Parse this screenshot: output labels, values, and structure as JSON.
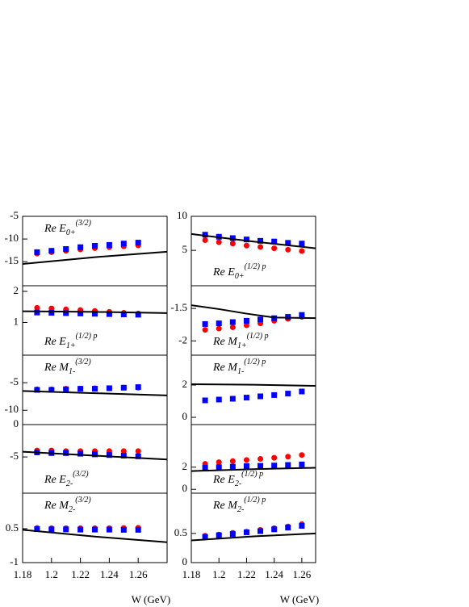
{
  "chart_data": [
    {
      "type": "scatter",
      "label": {
        "main": "Re E",
        "sub": "0+",
        "sup": "(3/2)"
      },
      "xlim": [
        1.18,
        1.28
      ],
      "ylim": [
        -20.3,
        -5
      ],
      "yticks": [
        -5,
        -10,
        -15
      ],
      "series": [
        {
          "color": "#ff0000",
          "marker": "circle",
          "x": [
            1.19,
            1.2,
            1.21,
            1.22,
            1.23,
            1.24,
            1.25,
            1.26
          ],
          "values": [
            -13.2,
            -12.9,
            -12.6,
            -12.3,
            -12.0,
            -11.8,
            -11.6,
            -11.4
          ]
        },
        {
          "color": "#0000ff",
          "marker": "square",
          "x": [
            1.19,
            1.2,
            1.21,
            1.22,
            1.23,
            1.24,
            1.25,
            1.26
          ],
          "values": [
            -12.9,
            -12.6,
            -12.2,
            -11.8,
            -11.5,
            -11.3,
            -11.0,
            -10.8
          ]
        },
        {
          "color": "#000000",
          "marker": "line",
          "x": [
            1.18,
            1.23,
            1.28
          ],
          "values": [
            -15.5,
            -14.0,
            -12.8
          ]
        }
      ]
    },
    {
      "type": "scatter",
      "label": {
        "main": "Re E",
        "sub": "0+",
        "sup": "(1/2) p"
      },
      "xlim": [
        1.18,
        1.27
      ],
      "ylim": [
        -0.2,
        10
      ],
      "yticks": [
        10,
        5
      ],
      "series": [
        {
          "color": "#ff0000",
          "marker": "circle",
          "x": [
            1.19,
            1.2,
            1.21,
            1.22,
            1.23,
            1.24,
            1.25,
            1.26
          ],
          "values": [
            6.5,
            6.2,
            6.0,
            5.7,
            5.5,
            5.3,
            5.1,
            4.9
          ]
        },
        {
          "color": "#0000ff",
          "marker": "square",
          "x": [
            1.19,
            1.2,
            1.21,
            1.22,
            1.23,
            1.24,
            1.25,
            1.26
          ],
          "values": [
            7.3,
            7.0,
            6.8,
            6.6,
            6.4,
            6.3,
            6.1,
            6.0
          ]
        },
        {
          "color": "#000000",
          "marker": "line",
          "x": [
            1.18,
            1.225,
            1.27
          ],
          "values": [
            7.4,
            6.3,
            5.3
          ]
        }
      ]
    },
    {
      "type": "scatter",
      "label": {
        "main": "Re E",
        "sub": "1+",
        "sup": "(1/2) p"
      },
      "xlim": [
        1.18,
        1.28
      ],
      "ylim": [
        -0.05,
        2.18
      ],
      "yticks": [
        2,
        1
      ],
      "series": [
        {
          "color": "#ff0000",
          "marker": "circle",
          "x": [
            1.19,
            1.2,
            1.21,
            1.22,
            1.23,
            1.24,
            1.25,
            1.26
          ],
          "values": [
            1.47,
            1.45,
            1.42,
            1.4,
            1.37,
            1.34,
            1.31,
            1.29
          ]
        },
        {
          "color": "#0000ff",
          "marker": "square",
          "x": [
            1.19,
            1.2,
            1.21,
            1.22,
            1.23,
            1.24,
            1.25,
            1.26
          ],
          "values": [
            1.32,
            1.31,
            1.3,
            1.29,
            1.28,
            1.27,
            1.26,
            1.25
          ]
        },
        {
          "color": "#000000",
          "marker": "line",
          "x": [
            1.18,
            1.23,
            1.28
          ],
          "values": [
            1.36,
            1.34,
            1.3
          ]
        }
      ]
    },
    {
      "type": "scatter",
      "label": {
        "main": "Re M",
        "sub": "1+",
        "sup": "(1/2) p"
      },
      "xlim": [
        1.18,
        1.27
      ],
      "ylim": [
        -2.22,
        -1.15
      ],
      "yticks": [
        -1.5,
        -2
      ],
      "series": [
        {
          "color": "#ff0000",
          "marker": "circle",
          "x": [
            1.19,
            1.2,
            1.21,
            1.22,
            1.23,
            1.24,
            1.25,
            1.26
          ],
          "values": [
            -1.83,
            -1.81,
            -1.79,
            -1.76,
            -1.73,
            -1.69,
            -1.66,
            -1.63
          ]
        },
        {
          "color": "#0000ff",
          "marker": "square",
          "x": [
            1.19,
            1.2,
            1.21,
            1.22,
            1.23,
            1.24,
            1.25,
            1.26
          ],
          "values": [
            -1.74,
            -1.73,
            -1.71,
            -1.69,
            -1.67,
            -1.65,
            -1.63,
            -1.6
          ]
        },
        {
          "color": "#000000",
          "marker": "line",
          "x": [
            1.18,
            1.2,
            1.22,
            1.24,
            1.27
          ],
          "values": [
            -1.45,
            -1.51,
            -1.58,
            -1.64,
            -1.65
          ]
        }
      ]
    },
    {
      "type": "scatter",
      "label": {
        "main": "Re M",
        "sub": "1-",
        "sup": "(3/2)"
      },
      "xlim": [
        1.18,
        1.28
      ],
      "ylim": [
        -12.6,
        0
      ],
      "yticks": [
        -5,
        -10
      ],
      "series": [
        {
          "color": "#ff0000",
          "marker": "circle",
          "x": [
            1.19,
            1.2,
            1.21,
            1.22,
            1.23,
            1.24,
            1.25,
            1.26
          ],
          "values": [
            -6.2,
            -6.2,
            -6.1,
            -6.1,
            -6.0,
            -6.0,
            -5.9,
            -5.9
          ]
        },
        {
          "color": "#0000ff",
          "marker": "square",
          "x": [
            1.19,
            1.2,
            1.21,
            1.22,
            1.23,
            1.24,
            1.25,
            1.26
          ],
          "values": [
            -6.3,
            -6.3,
            -6.2,
            -6.1,
            -6.1,
            -6.0,
            -5.9,
            -5.8
          ]
        },
        {
          "color": "#000000",
          "marker": "line",
          "x": [
            1.18,
            1.23,
            1.28
          ],
          "values": [
            -6.5,
            -6.9,
            -7.3
          ]
        }
      ]
    },
    {
      "type": "scatter",
      "label": {
        "main": "Re M",
        "sub": "1-",
        "sup": "(1/2) p"
      },
      "xlim": [
        1.18,
        1.27
      ],
      "ylim": [
        -0.45,
        3.85
      ],
      "yticks": [
        2,
        0
      ],
      "series": [
        {
          "color": "#0000ff",
          "marker": "square",
          "x": [
            1.19,
            1.2,
            1.21,
            1.22,
            1.23,
            1.24,
            1.25,
            1.26
          ],
          "values": [
            1.05,
            1.1,
            1.15,
            1.22,
            1.3,
            1.38,
            1.47,
            1.6
          ]
        },
        {
          "color": "#000000",
          "marker": "line",
          "x": [
            1.18,
            1.225,
            1.27
          ],
          "values": [
            2.05,
            2.02,
            1.95
          ]
        }
      ]
    },
    {
      "type": "scatter",
      "label": {
        "main": "Re E",
        "sub": "2-",
        "sup": "(3/2)"
      },
      "xlim": [
        1.18,
        1.28
      ],
      "ylim": [
        -10.6,
        0
      ],
      "yticks": [
        0,
        -5
      ],
      "series": [
        {
          "color": "#ff0000",
          "marker": "circle",
          "x": [
            1.19,
            1.2,
            1.21,
            1.22,
            1.23,
            1.24,
            1.25,
            1.26
          ],
          "values": [
            -4.0,
            -4.0,
            -4.1,
            -4.1,
            -4.1,
            -4.1,
            -4.1,
            -4.1
          ]
        },
        {
          "color": "#0000ff",
          "marker": "square",
          "x": [
            1.19,
            1.2,
            1.21,
            1.22,
            1.23,
            1.24,
            1.25,
            1.26
          ],
          "values": [
            -4.3,
            -4.4,
            -4.4,
            -4.5,
            -4.6,
            -4.7,
            -4.8,
            -4.9
          ]
        },
        {
          "color": "#000000",
          "marker": "line",
          "x": [
            1.18,
            1.23,
            1.28
          ],
          "values": [
            -4.2,
            -4.8,
            -5.4
          ]
        }
      ]
    },
    {
      "type": "scatter",
      "label": {
        "main": "Re E",
        "sub": "2-",
        "sup": "(1/2) p"
      },
      "xlim": [
        1.18,
        1.27
      ],
      "ylim": [
        -0.35,
        5.85
      ],
      "yticks": [
        2,
        0
      ],
      "series": [
        {
          "color": "#ff0000",
          "marker": "circle",
          "x": [
            1.19,
            1.2,
            1.21,
            1.22,
            1.23,
            1.24,
            1.25,
            1.26
          ],
          "values": [
            2.3,
            2.45,
            2.55,
            2.65,
            2.75,
            2.85,
            2.95,
            3.1
          ]
        },
        {
          "color": "#0000ff",
          "marker": "square",
          "x": [
            1.19,
            1.2,
            1.21,
            1.22,
            1.23,
            1.24,
            1.25,
            1.26
          ],
          "values": [
            1.95,
            2.0,
            2.05,
            2.1,
            2.12,
            2.15,
            2.2,
            2.25
          ]
        },
        {
          "color": "#000000",
          "marker": "line",
          "x": [
            1.18,
            1.225,
            1.27
          ],
          "values": [
            1.65,
            1.82,
            1.95
          ]
        }
      ]
    },
    {
      "type": "scatter",
      "label": {
        "main": "Re M",
        "sub": "2-",
        "sup": "(3/2)"
      },
      "xlim": [
        1.18,
        1.28
      ],
      "ylim": [
        -1,
        2.07
      ],
      "yticks": [
        0.5,
        -1
      ],
      "xticks": [
        1.18,
        1.2,
        1.22,
        1.24,
        1.26
      ],
      "xlabel": "W (GeV)",
      "series": [
        {
          "color": "#ff0000",
          "marker": "circle",
          "x": [
            1.19,
            1.2,
            1.21,
            1.22,
            1.23,
            1.24,
            1.25,
            1.26
          ],
          "values": [
            0.53,
            0.52,
            0.52,
            0.52,
            0.52,
            0.52,
            0.53,
            0.54
          ]
        },
        {
          "color": "#0000ff",
          "marker": "square",
          "x": [
            1.19,
            1.2,
            1.21,
            1.22,
            1.23,
            1.24,
            1.25,
            1.26
          ],
          "values": [
            0.48,
            0.47,
            0.47,
            0.46,
            0.46,
            0.46,
            0.45,
            0.45
          ]
        },
        {
          "color": "#000000",
          "marker": "line",
          "x": [
            1.18,
            1.23,
            1.28
          ],
          "values": [
            0.45,
            0.15,
            -0.1
          ]
        }
      ]
    },
    {
      "type": "scatter",
      "label": {
        "main": "Re M",
        "sub": "2-",
        "sup": "(1/2) p"
      },
      "xlim": [
        1.18,
        1.27
      ],
      "ylim": [
        0,
        1.19
      ],
      "yticks": [
        0.5,
        0
      ],
      "xticks": [
        1.18,
        1.2,
        1.22,
        1.24,
        1.26
      ],
      "xlabel": "W (GeV)",
      "series": [
        {
          "color": "#ff0000",
          "marker": "circle",
          "x": [
            1.19,
            1.2,
            1.21,
            1.22,
            1.23,
            1.24,
            1.25,
            1.26
          ],
          "values": [
            0.46,
            0.48,
            0.51,
            0.53,
            0.56,
            0.59,
            0.62,
            0.66
          ]
        },
        {
          "color": "#0000ff",
          "marker": "square",
          "x": [
            1.19,
            1.2,
            1.21,
            1.22,
            1.23,
            1.24,
            1.25,
            1.26
          ],
          "values": [
            0.44,
            0.47,
            0.49,
            0.52,
            0.54,
            0.57,
            0.6,
            0.63
          ]
        },
        {
          "color": "#000000",
          "marker": "line",
          "x": [
            1.18,
            1.225,
            1.27
          ],
          "values": [
            0.38,
            0.45,
            0.5
          ]
        }
      ]
    }
  ]
}
